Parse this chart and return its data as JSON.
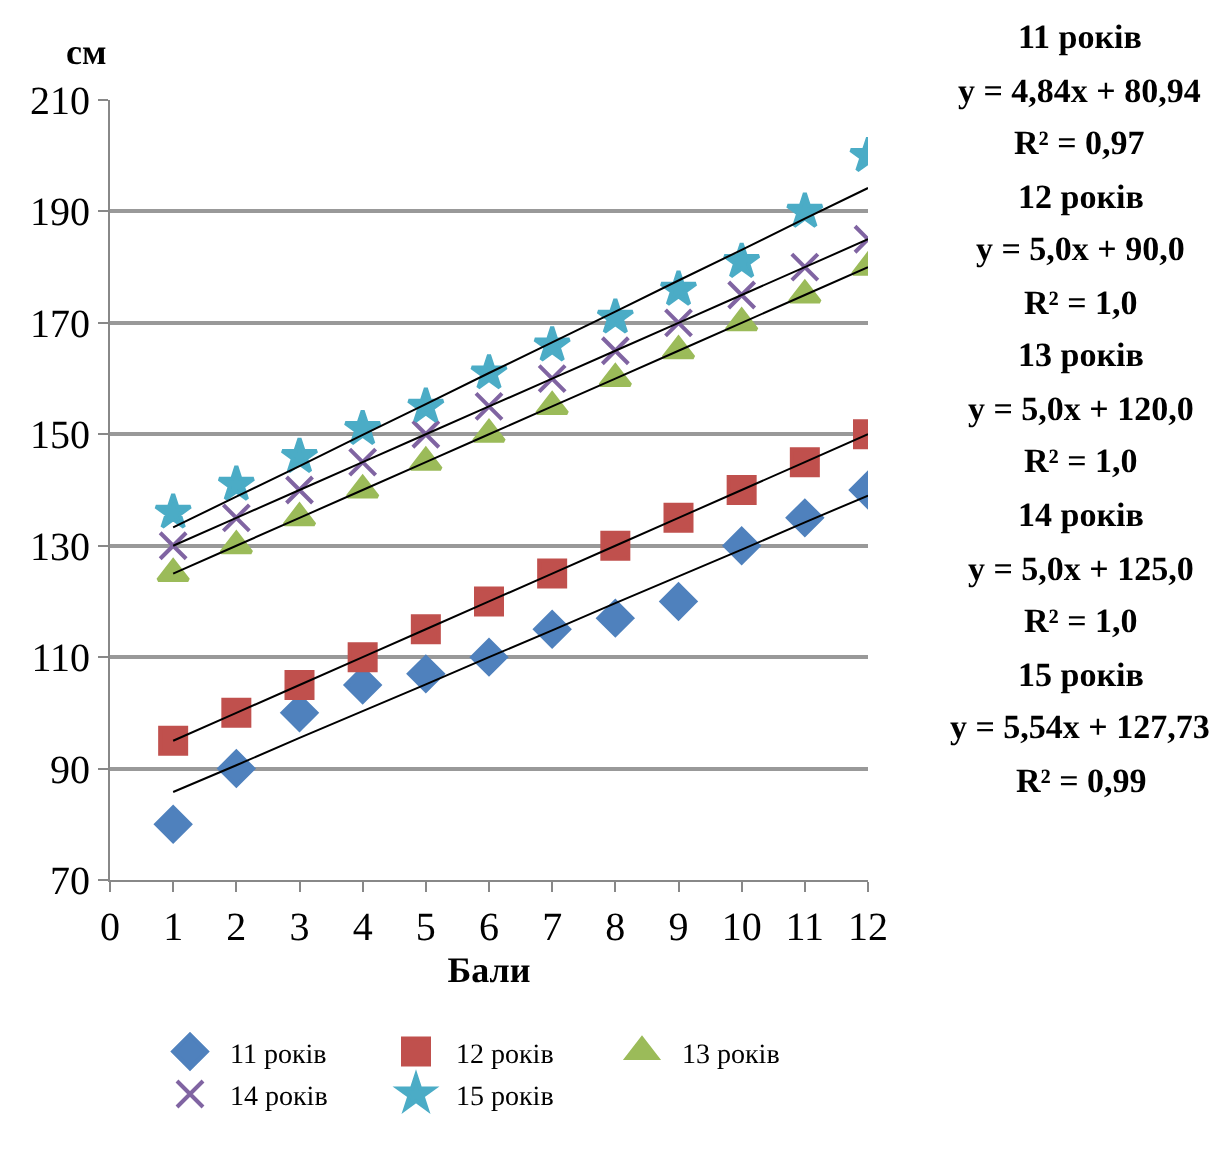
{
  "chart_data": {
    "type": "scatter",
    "ylabel": "см",
    "xlabel": "Бали",
    "x": [
      1,
      2,
      3,
      4,
      5,
      6,
      7,
      8,
      9,
      10,
      11,
      12
    ],
    "xlim": [
      0,
      12
    ],
    "xticks": [
      0,
      1,
      2,
      3,
      4,
      5,
      6,
      7,
      8,
      9,
      10,
      11,
      12
    ],
    "ylim": [
      70,
      210
    ],
    "yticks": [
      70,
      90,
      110,
      130,
      150,
      170,
      190,
      210
    ],
    "grid": "y",
    "legend": "bottom",
    "series": [
      {
        "name": "11 років",
        "color": "#4f81bd",
        "marker": "diamond",
        "values": [
          80,
          90,
          100,
          105,
          107,
          110,
          115,
          117,
          120,
          130,
          135,
          140
        ]
      },
      {
        "name": "12 років",
        "color": "#c0504d",
        "marker": "square",
        "values": [
          95,
          100,
          105,
          110,
          115,
          120,
          125,
          130,
          135,
          140,
          145,
          150
        ]
      },
      {
        "name": "13 років",
        "color": "#9bbb59",
        "marker": "triangle",
        "values": [
          125,
          130,
          135,
          140,
          145,
          150,
          155,
          160,
          165,
          170,
          175,
          180
        ]
      },
      {
        "name": "14 років",
        "color": "#8064a2",
        "marker": "cross",
        "values": [
          130,
          135,
          140,
          145,
          150,
          155,
          160,
          165,
          170,
          175,
          180,
          185
        ]
      },
      {
        "name": "15 років",
        "color": "#4bacc6",
        "marker": "star",
        "values": [
          136,
          141,
          146,
          151,
          155,
          161,
          166,
          171,
          176,
          181,
          190,
          200
        ]
      },
      {
        "type": "line",
        "color": "#000000",
        "marker": "none",
        "values": [
          85.8,
          90.6,
          95.5,
          100.3,
          105.1,
          110.0,
          114.8,
          119.7,
          124.5,
          129.3,
          134.2,
          139.0
        ]
      },
      {
        "type": "line",
        "color": "#000000",
        "marker": "none",
        "values": [
          95,
          100,
          105,
          110,
          115,
          120,
          125,
          130,
          135,
          140,
          145,
          150
        ]
      },
      {
        "type": "line",
        "color": "#000000",
        "marker": "none",
        "values": [
          125,
          130,
          135,
          140,
          145,
          150,
          155,
          160,
          165,
          170,
          175,
          180
        ]
      },
      {
        "type": "line",
        "color": "#000000",
        "marker": "none",
        "values": [
          130,
          135,
          140,
          145,
          150,
          155,
          160,
          165,
          170,
          175,
          180,
          185
        ]
      },
      {
        "type": "line",
        "color": "#000000",
        "marker": "none",
        "values": [
          133.3,
          138.8,
          144.3,
          149.9,
          155.4,
          161.0,
          166.5,
          172.0,
          177.6,
          183.1,
          188.7,
          194.2
        ]
      }
    ],
    "annotations": [
      "11 років",
      "y = 4,84x + 80,94",
      "R² = 0,97",
      "12 років",
      "y = 5,0x + 90,0",
      "R² = 1,0",
      "13 років",
      "y = 5,0x + 120,0",
      "R² = 1,0",
      "14 років",
      "y = 5,0x + 125,0",
      "R² = 1,0",
      "15 років",
      "y = 5,54x + 127,73",
      "R² = 0,99"
    ]
  }
}
